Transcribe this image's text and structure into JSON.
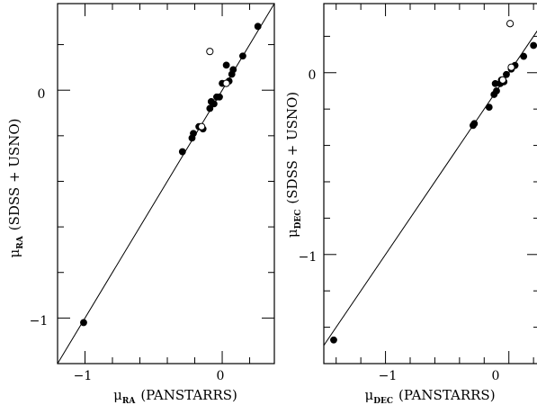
{
  "chart_data": [
    {
      "type": "scatter",
      "xlabel": "μRA (PANSTARRS)",
      "ylabel": "μRA (SDSS + USNO)",
      "xlabel_parts": {
        "symbol": "μ",
        "sub": "RA",
        "rest": "(PANSTARRS)"
      },
      "ylabel_parts": {
        "symbol": "μ",
        "sub": "RA",
        "rest": "(SDSS + USNO)"
      },
      "xlim": [
        -1.2,
        0.38
      ],
      "ylim": [
        -1.2,
        0.38
      ],
      "x_major_ticks": [
        -1,
        0
      ],
      "y_major_ticks": [
        -1,
        0
      ],
      "x_minor_step": 0.2,
      "y_minor_step": 0.2,
      "tick_labels": {
        "x": [
          "−1",
          "0"
        ],
        "y": [
          "−1",
          "0"
        ]
      },
      "reference_line": "y = x",
      "grid": false,
      "series": [
        {
          "marker": "filled",
          "x": [
            -1.01,
            -0.29,
            -0.22,
            -0.21,
            -0.17,
            -0.14,
            -0.09,
            -0.06,
            -0.04,
            -0.02,
            0.0,
            0.03,
            0.07,
            0.08,
            0.15,
            0.26,
            -0.08,
            0.05
          ],
          "y": [
            -1.02,
            -0.27,
            -0.21,
            -0.19,
            -0.16,
            -0.17,
            -0.08,
            -0.06,
            -0.03,
            -0.03,
            0.03,
            0.11,
            0.07,
            0.09,
            0.15,
            0.28,
            -0.05,
            0.04
          ]
        },
        {
          "marker": "open",
          "x": [
            -0.09,
            0.03,
            -0.15
          ],
          "y": [
            0.17,
            0.03,
            -0.16
          ]
        }
      ]
    },
    {
      "type": "scatter",
      "xlabel": "μDEC (PANSTARRS)",
      "ylabel": "μDEC (SDSS + USNO)",
      "xlabel_parts": {
        "symbol": "μ",
        "sub": "DEC",
        "rest": "(PANSTARRS)"
      },
      "ylabel_parts": {
        "symbol": "μ",
        "sub": "DEC",
        "rest": "(SDSS + USNO)"
      },
      "xlim": [
        -1.5,
        0.25
      ],
      "ylim": [
        -1.6,
        0.38
      ],
      "x_major_ticks": [
        -1,
        0
      ],
      "y_major_ticks": [
        -1,
        0
      ],
      "x_minor_step": 0.2,
      "y_minor_step": 0.2,
      "tick_labels": {
        "x": [
          "−1",
          "0"
        ],
        "y": [
          "−1",
          "0"
        ]
      },
      "reference_line": "y = x",
      "grid": false,
      "series": [
        {
          "marker": "filled",
          "x": [
            -1.42,
            -0.29,
            -0.28,
            -0.16,
            -0.12,
            -0.1,
            -0.07,
            -0.04,
            -0.02,
            0.02,
            0.05,
            0.12,
            0.2,
            -0.11,
            -0.06
          ],
          "y": [
            -1.47,
            -0.29,
            -0.28,
            -0.19,
            -0.12,
            -0.1,
            -0.06,
            -0.05,
            -0.01,
            0.02,
            0.04,
            0.09,
            0.15,
            -0.06,
            -0.04
          ]
        },
        {
          "marker": "open",
          "x": [
            0.01,
            0.02,
            -0.05
          ],
          "y": [
            0.27,
            0.03,
            -0.04
          ]
        }
      ]
    }
  ]
}
